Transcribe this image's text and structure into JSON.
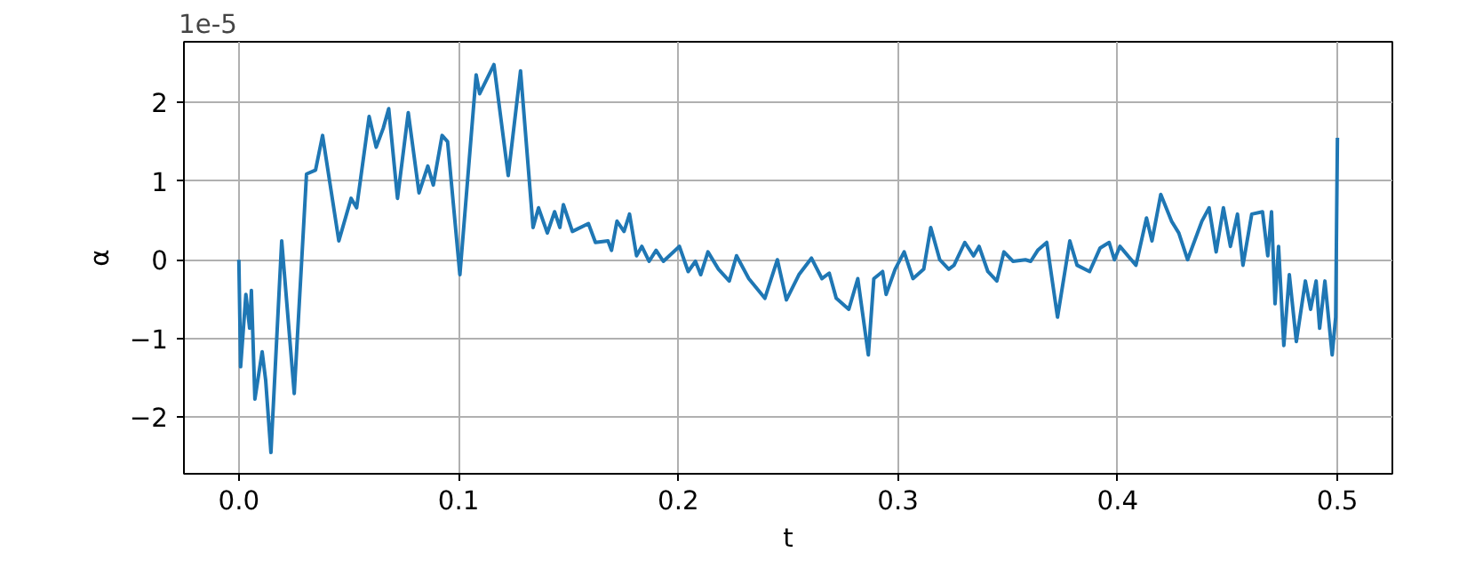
{
  "chart_data": {
    "type": "line",
    "xlabel": "t",
    "ylabel": "α",
    "annotations": [
      "1e-5"
    ],
    "x": [
      0.0,
      0.0008,
      0.0032,
      0.0049,
      0.0057,
      0.0073,
      0.0106,
      0.0122,
      0.0146,
      0.0195,
      0.0252,
      0.0308,
      0.0349,
      0.0381,
      0.0455,
      0.0511,
      0.0536,
      0.0593,
      0.0625,
      0.0657,
      0.0682,
      0.0722,
      0.0771,
      0.082,
      0.086,
      0.0885,
      0.0925,
      0.095,
      0.1006,
      0.108,
      0.1096,
      0.1161,
      0.1226,
      0.1282,
      0.1339,
      0.1364,
      0.1404,
      0.1437,
      0.1461,
      0.1477,
      0.1518,
      0.1591,
      0.1623,
      0.168,
      0.1696,
      0.1721,
      0.1753,
      0.1778,
      0.181,
      0.1834,
      0.1867,
      0.1899,
      0.1932,
      0.2005,
      0.2045,
      0.2078,
      0.2102,
      0.2135,
      0.2183,
      0.2232,
      0.2265,
      0.2321,
      0.2394,
      0.2451,
      0.2492,
      0.2549,
      0.2606,
      0.2654,
      0.2687,
      0.2719,
      0.2776,
      0.2817,
      0.2865,
      0.289,
      0.293,
      0.2946,
      0.2987,
      0.3028,
      0.3068,
      0.3117,
      0.3149,
      0.319,
      0.3231,
      0.3255,
      0.3304,
      0.3344,
      0.3369,
      0.3409,
      0.345,
      0.3482,
      0.3523,
      0.358,
      0.3604,
      0.3636,
      0.3677,
      0.3726,
      0.3782,
      0.3815,
      0.3872,
      0.392,
      0.3961,
      0.3985,
      0.401,
      0.4083,
      0.4131,
      0.4156,
      0.4196,
      0.4245,
      0.4278,
      0.4318,
      0.4383,
      0.4416,
      0.4448,
      0.4481,
      0.4513,
      0.4545,
      0.457,
      0.461,
      0.4659,
      0.4683,
      0.47,
      0.4716,
      0.4732,
      0.4756,
      0.4781,
      0.4813,
      0.4854,
      0.4878,
      0.4903,
      0.4919,
      0.4943,
      0.4976,
      0.4992,
      0.5
    ],
    "series": [
      {
        "color": "#1f77b4",
        "values": [
          0.0,
          -1.36,
          -0.44,
          -0.87,
          -0.39,
          -1.77,
          -1.17,
          -1.53,
          -2.45,
          0.24,
          -1.7,
          1.09,
          1.14,
          1.58,
          0.24,
          0.78,
          0.66,
          1.82,
          1.43,
          1.67,
          1.92,
          0.78,
          1.87,
          0.85,
          1.19,
          0.95,
          1.58,
          1.5,
          -0.19,
          2.35,
          2.11,
          2.48,
          1.07,
          2.4,
          0.41,
          0.66,
          0.34,
          0.61,
          0.41,
          0.7,
          0.36,
          0.46,
          0.22,
          0.24,
          0.12,
          0.49,
          0.36,
          0.58,
          0.05,
          0.17,
          -0.02,
          0.12,
          -0.02,
          0.17,
          -0.15,
          -0.02,
          -0.19,
          0.1,
          -0.12,
          -0.27,
          0.05,
          -0.24,
          -0.49,
          0.0,
          -0.51,
          -0.19,
          0.02,
          -0.24,
          -0.17,
          -0.49,
          -0.63,
          -0.24,
          -1.21,
          -0.24,
          -0.15,
          -0.44,
          -0.12,
          0.1,
          -0.24,
          -0.12,
          0.41,
          0.0,
          -0.12,
          -0.07,
          0.22,
          0.05,
          0.17,
          -0.15,
          -0.27,
          0.1,
          -0.02,
          0.0,
          -0.02,
          0.12,
          0.22,
          -0.73,
          0.24,
          -0.07,
          -0.15,
          0.15,
          0.22,
          0.0,
          0.17,
          -0.07,
          0.53,
          0.24,
          0.83,
          0.49,
          0.34,
          0.0,
          0.49,
          0.66,
          0.1,
          0.66,
          0.17,
          0.58,
          -0.07,
          0.58,
          0.61,
          0.05,
          0.61,
          -0.56,
          0.17,
          -1.09,
          -0.19,
          -1.04,
          -0.27,
          -0.63,
          -0.27,
          -0.87,
          -0.27,
          -1.21,
          -0.73,
          1.55
        ]
      }
    ],
    "xlim": [
      -0.025,
      0.525
    ],
    "ylim": [
      -2.72,
      2.77
    ],
    "xticks": [
      {
        "value": 0,
        "label": "0.0"
      },
      0.1,
      0.2,
      0.3,
      0.4,
      0.5
    ],
    "yticks": [
      {
        "value": -2,
        "label": "−2"
      },
      {
        "value": -1,
        "label": "−1"
      },
      0,
      1,
      2
    ],
    "grid": true,
    "marker": "none",
    "line_style": "solid"
  }
}
